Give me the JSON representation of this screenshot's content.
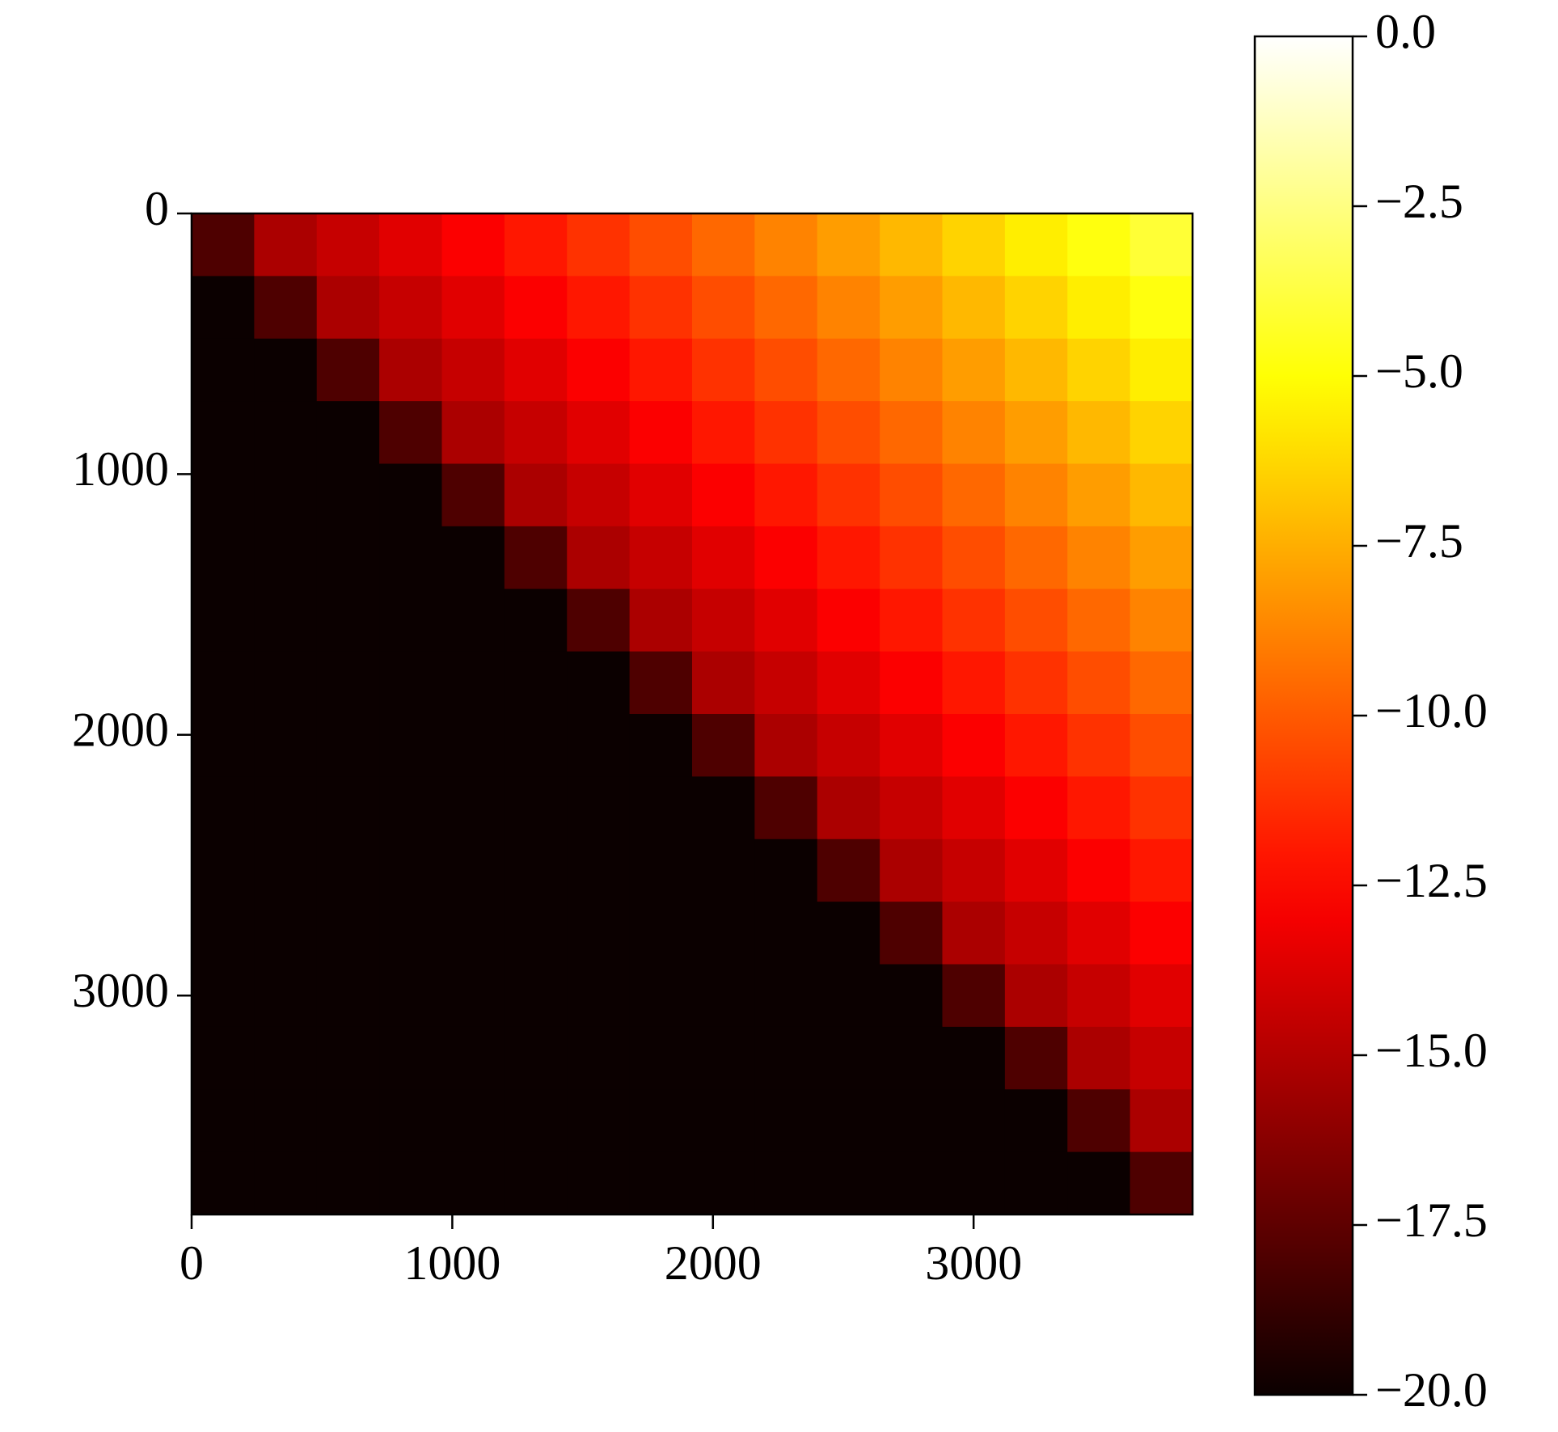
{
  "chart_data": {
    "type": "heatmap",
    "colormap": "hot",
    "matrix": [
      [
        -18,
        -15.2,
        -14.4,
        -13.6,
        -12.8,
        -12,
        -11.2,
        -10.4,
        -9.6,
        -8.8,
        -8,
        -7.2,
        -6.4,
        -5.6,
        -4.8,
        -4
      ],
      [
        -20,
        -18,
        -15.2,
        -14.4,
        -13.6,
        -12.8,
        -12,
        -11.2,
        -10.4,
        -9.6,
        -8.8,
        -8,
        -7.2,
        -6.4,
        -5.6,
        -4.8
      ],
      [
        -20,
        -20,
        -18,
        -15.2,
        -14.4,
        -13.6,
        -12.8,
        -12,
        -11.2,
        -10.4,
        -9.6,
        -8.8,
        -8,
        -7.2,
        -6.4,
        -5.6
      ],
      [
        -20,
        -20,
        -20,
        -18,
        -15.2,
        -14.4,
        -13.6,
        -12.8,
        -12,
        -11.2,
        -10.4,
        -9.6,
        -8.8,
        -8,
        -7.2,
        -6.4
      ],
      [
        -20,
        -20,
        -20,
        -20,
        -18,
        -15.2,
        -14.4,
        -13.6,
        -12.8,
        -12,
        -11.2,
        -10.4,
        -9.6,
        -8.8,
        -8,
        -7.2
      ],
      [
        -20,
        -20,
        -20,
        -20,
        -20,
        -18,
        -15.2,
        -14.4,
        -13.6,
        -12.8,
        -12,
        -11.2,
        -10.4,
        -9.6,
        -8.8,
        -8
      ],
      [
        -20,
        -20,
        -20,
        -20,
        -20,
        -20,
        -18,
        -15.2,
        -14.4,
        -13.6,
        -12.8,
        -12,
        -11.2,
        -10.4,
        -9.6,
        -8.8
      ],
      [
        -20,
        -20,
        -20,
        -20,
        -20,
        -20,
        -20,
        -18,
        -15.2,
        -14.4,
        -13.6,
        -12.8,
        -12,
        -11.2,
        -10.4,
        -9.6
      ],
      [
        -20,
        -20,
        -20,
        -20,
        -20,
        -20,
        -20,
        -20,
        -18,
        -15.2,
        -14.4,
        -13.6,
        -12.8,
        -12,
        -11.2,
        -10.4
      ],
      [
        -20,
        -20,
        -20,
        -20,
        -20,
        -20,
        -20,
        -20,
        -20,
        -18,
        -15.2,
        -14.4,
        -13.6,
        -12.8,
        -12,
        -11.2
      ],
      [
        -20,
        -20,
        -20,
        -20,
        -20,
        -20,
        -20,
        -20,
        -20,
        -20,
        -18,
        -15.2,
        -14.4,
        -13.6,
        -12.8,
        -12
      ],
      [
        -20,
        -20,
        -20,
        -20,
        -20,
        -20,
        -20,
        -20,
        -20,
        -20,
        -20,
        -18,
        -15.2,
        -14.4,
        -13.6,
        -12.8
      ],
      [
        -20,
        -20,
        -20,
        -20,
        -20,
        -20,
        -20,
        -20,
        -20,
        -20,
        -20,
        -20,
        -18,
        -15.2,
        -14.4,
        -13.6
      ],
      [
        -20,
        -20,
        -20,
        -20,
        -20,
        -20,
        -20,
        -20,
        -20,
        -20,
        -20,
        -20,
        -20,
        -18,
        -15.2,
        -14.4
      ],
      [
        -20,
        -20,
        -20,
        -20,
        -20,
        -20,
        -20,
        -20,
        -20,
        -20,
        -20,
        -20,
        -20,
        -20,
        -18,
        -15.2
      ],
      [
        -20,
        -20,
        -20,
        -20,
        -20,
        -20,
        -20,
        -20,
        -20,
        -20,
        -20,
        -20,
        -20,
        -20,
        -20,
        -18
      ]
    ],
    "xlim": [
      0,
      3840
    ],
    "ylim": [
      3840,
      0
    ],
    "xticks": [
      0,
      1000,
      2000,
      3000
    ],
    "yticks": [
      0,
      1000,
      2000,
      3000
    ],
    "clim": [
      -20,
      0
    ],
    "cticks": [
      {
        "value": 0,
        "label": "0.0"
      },
      {
        "value": -2.5,
        "label": "−2.5"
      },
      {
        "value": -5,
        "label": "−5.0"
      },
      {
        "value": -7.5,
        "label": "−7.5"
      },
      {
        "value": -10,
        "label": "−10.0"
      },
      {
        "value": -12.5,
        "label": "−12.5"
      },
      {
        "value": -15,
        "label": "−15.0"
      },
      {
        "value": -17.5,
        "label": "−17.5"
      },
      {
        "value": -20,
        "label": "−20.0"
      }
    ]
  }
}
